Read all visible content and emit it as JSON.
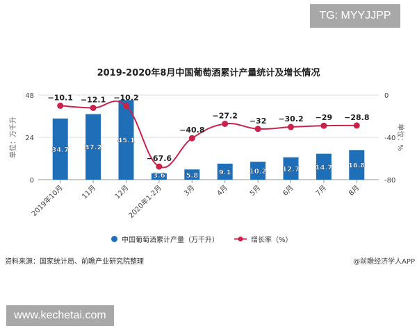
{
  "watermark_top": "TG: MYYJJPP",
  "watermark_bottom": "www.kechetai.com",
  "source": "资料来源：国家统计局、前瞻产业研究院整理",
  "credit": "@前瞻经济学人APP",
  "chart_data": {
    "type": "bar+line",
    "title": "2019-2020年8月中国葡萄酒累计产量统计及增长情况",
    "categories": [
      "2019年10月",
      "11月",
      "12月",
      "2020年1-2月",
      "3月",
      "4月",
      "5月",
      "6月",
      "7月",
      "8月"
    ],
    "series": [
      {
        "name": "中国葡萄酒累计产量（万千升）",
        "type": "bar",
        "axis": "left",
        "color": "#1f6fb8",
        "values": [
          34.7,
          37.2,
          45.1,
          3.6,
          5.8,
          9.1,
          10.2,
          12.7,
          14.7,
          16.8
        ]
      },
      {
        "name": "增长率（%）",
        "type": "line",
        "axis": "right",
        "color": "#c9234b",
        "values": [
          -10.1,
          -12.1,
          -10.2,
          -67.6,
          -40.8,
          -27.2,
          -32,
          -30.2,
          -29,
          -28.8
        ]
      }
    ],
    "ylabel_left": "单位：万千升",
    "ylabel_right": "单位：%",
    "ylim_left": [
      0,
      48
    ],
    "yticks_left": [
      "0",
      "24",
      "48"
    ],
    "ylim_right": [
      -80,
      0
    ],
    "yticks_right": [
      "-80",
      "-40",
      "0"
    ],
    "grid": true,
    "legend": "bottom"
  }
}
